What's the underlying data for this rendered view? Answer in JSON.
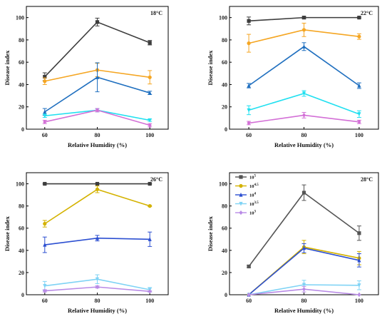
{
  "chart_data": [
    {
      "type": "line",
      "title": "18°C",
      "xlabel": "Relative Humidity (%)",
      "ylabel": "Disease index",
      "x": [
        60,
        80,
        100
      ],
      "xlim": [
        53,
        107
      ],
      "ylim": [
        0,
        110
      ],
      "yticks": [
        0,
        20,
        40,
        60,
        80,
        100
      ],
      "series": [
        {
          "color": "#3d3d3d",
          "marker": "square",
          "values": [
            47,
            96,
            77.5
          ],
          "errors": [
            3.5,
            3.5,
            2
          ]
        },
        {
          "color": "#f5a623",
          "marker": "circle",
          "values": [
            43,
            53,
            46.5
          ],
          "errors": [
            3,
            6,
            6
          ]
        },
        {
          "color": "#1f6fbf",
          "marker": "triangle",
          "values": [
            15.5,
            46.5,
            32.5
          ],
          "errors": [
            3,
            13,
            1.5
          ]
        },
        {
          "color": "#20e0f0",
          "marker": "triangle-down",
          "values": [
            12,
            17,
            8
          ],
          "errors": [
            1.5,
            1.5,
            1
          ]
        },
        {
          "color": "#d36fd6",
          "marker": "diamond",
          "values": [
            6.5,
            17,
            3.5
          ],
          "errors": [
            1.5,
            1.5,
            1.5
          ]
        }
      ]
    },
    {
      "type": "line",
      "title": "22°C",
      "xlabel": "Relative Humidity (%)",
      "ylabel": "Disease index",
      "x": [
        60,
        80,
        100
      ],
      "xlim": [
        53,
        107
      ],
      "ylim": [
        0,
        110
      ],
      "yticks": [
        0,
        20,
        40,
        60,
        80,
        100
      ],
      "series": [
        {
          "color": "#3d3d3d",
          "marker": "square",
          "values": [
            97,
            100,
            100
          ],
          "errors": [
            3.5,
            1,
            0.5
          ]
        },
        {
          "color": "#f5a623",
          "marker": "circle",
          "values": [
            77,
            89,
            83
          ],
          "errors": [
            8,
            6,
            2.5
          ]
        },
        {
          "color": "#1f6fbf",
          "marker": "triangle",
          "values": [
            39,
            74,
            39
          ],
          "errors": [
            2,
            3.5,
            2.5
          ]
        },
        {
          "color": "#20e0f0",
          "marker": "triangle-down",
          "values": [
            17,
            32,
            13.5
          ],
          "errors": [
            4,
            2.5,
            3
          ]
        },
        {
          "color": "#d36fd6",
          "marker": "diamond",
          "values": [
            5.5,
            12.5,
            6.5
          ],
          "errors": [
            1.5,
            2.5,
            1.5
          ]
        }
      ]
    },
    {
      "type": "line",
      "title": "26°C",
      "xlabel": "Relative Humidity (%)",
      "ylabel": "Disease index",
      "x": [
        60,
        80,
        100
      ],
      "xlim": [
        53,
        107
      ],
      "ylim": [
        0,
        110
      ],
      "yticks": [
        0,
        20,
        40,
        60,
        80,
        100
      ],
      "series": [
        {
          "color": "#3d3d3d",
          "marker": "square",
          "values": [
            100,
            100,
            100
          ],
          "errors": [
            0.3,
            0.3,
            0.3
          ]
        },
        {
          "color": "#d4b200",
          "marker": "circle",
          "values": [
            64,
            95,
            80
          ],
          "errors": [
            3,
            3,
            0.5
          ]
        },
        {
          "color": "#2c4fd1",
          "marker": "triangle",
          "values": [
            45,
            51,
            50
          ],
          "errors": [
            7,
            2.5,
            6.5
          ]
        },
        {
          "color": "#7fd3f5",
          "marker": "triangle-down",
          "values": [
            8,
            14,
            4.5
          ],
          "errors": [
            4,
            4,
            2
          ]
        },
        {
          "color": "#b98be6",
          "marker": "diamond",
          "values": [
            3.5,
            7,
            3
          ],
          "errors": [
            1,
            1,
            0.5
          ]
        }
      ]
    },
    {
      "type": "line",
      "title": "28°C",
      "xlabel": "Relative Humidity (%)",
      "ylabel": "Disease index",
      "x": [
        60,
        80,
        100
      ],
      "xlim": [
        53,
        107
      ],
      "ylim": [
        0,
        110
      ],
      "yticks": [
        0,
        20,
        40,
        60,
        80,
        100
      ],
      "legend_position": "top-left",
      "legend": [
        "10^5",
        "10^4.5",
        "10^4",
        "10^3.5",
        "10^3"
      ],
      "series": [
        {
          "name": "10^5",
          "color": "#555555",
          "marker": "square",
          "values": [
            25.5,
            92,
            55.5
          ],
          "errors": [
            1,
            7,
            6.5
          ]
        },
        {
          "name": "10^4.5",
          "color": "#d4b200",
          "marker": "circle",
          "values": [
            0,
            43,
            33
          ],
          "errors": [
            0,
            6,
            6
          ]
        },
        {
          "name": "10^4",
          "color": "#2c4fd1",
          "marker": "triangle",
          "values": [
            0,
            42,
            31
          ],
          "errors": [
            0,
            4,
            6
          ]
        },
        {
          "name": "10^3.5",
          "color": "#7fd3f5",
          "marker": "triangle-down",
          "values": [
            0,
            9,
            8.5
          ],
          "errors": [
            0,
            4,
            4
          ]
        },
        {
          "name": "10^3",
          "color": "#b98be6",
          "marker": "diamond",
          "values": [
            0,
            5,
            0
          ],
          "errors": [
            0,
            2.5,
            0
          ]
        }
      ]
    }
  ]
}
